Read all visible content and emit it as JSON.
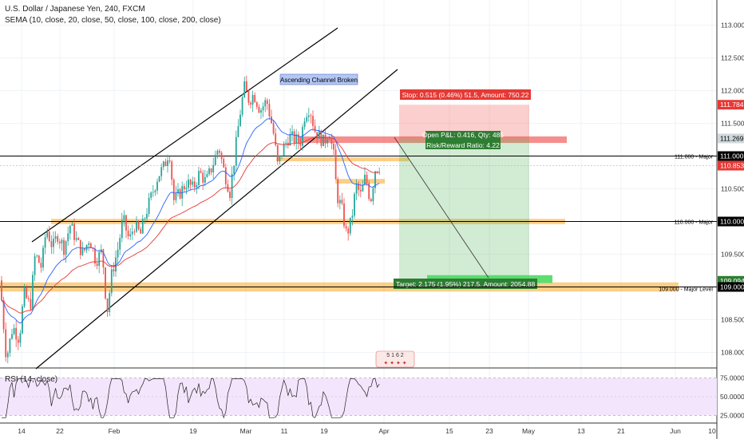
{
  "header": {
    "title": "U.S. Dollar / Japanese Yen, 240, FXCM",
    "indicator": "SEMA (10, close, 20, close, 50, close, 100, close, 200, close)",
    "rsi_label": "RSI (14, close)"
  },
  "colors": {
    "up": "#26a69a",
    "down": "#ef5350",
    "ema_fast": "#e53935",
    "ema_slow": "#2962ff",
    "orange_zone": "#f9a825",
    "red_zone": "#ef5350",
    "profit": "#4caf50",
    "loss": "#ef5350",
    "rsi_bg": "#f3e5fc",
    "rsi_line": "#222222"
  },
  "chart_data": {
    "type": "candlestick",
    "symbol": "USDJPY",
    "timeframe": "240",
    "x_ticks": [
      "14",
      "22",
      "Feb",
      "19",
      "Mar",
      "11",
      "19",
      "Apr",
      "15",
      "23",
      "May",
      "13",
      "21",
      "Jun",
      "10"
    ],
    "y_ticks": [
      "113.000",
      "112.500",
      "112.000",
      "111.500",
      "111.000",
      "110.500",
      "110.000",
      "109.500",
      "109.000",
      "108.500",
      "108.000"
    ],
    "ylim": [
      107.7,
      113.3
    ],
    "price_tags": [
      {
        "label": "111.784",
        "value": 111.784,
        "kind": "stop"
      },
      {
        "label": "111.269",
        "value": 111.269,
        "kind": "entry"
      },
      {
        "label": "111.000",
        "value": 111.0,
        "kind": "level"
      },
      {
        "label": "110.853",
        "value": 110.853,
        "kind": "last"
      },
      {
        "label": "110.000",
        "value": 110.0,
        "kind": "level"
      },
      {
        "label": "109.094",
        "value": 109.094,
        "kind": "target"
      },
      {
        "label": "109.000",
        "value": 109.0,
        "kind": "level"
      }
    ],
    "levels": [
      {
        "price": 111.0,
        "label": "111.000 - Major"
      },
      {
        "price": 110.0,
        "label": "110.000 - Major"
      },
      {
        "price": 109.0,
        "label": "109.000 - Major Level"
      }
    ],
    "annotation": "Ascending Channel Broken",
    "position": {
      "stop_text": "Stop: 0.515 (0.46%) 51.5, Amount: 750.22",
      "pnl_text": "Open P&L: 0.416, Qty: 485",
      "rr_text": "Risk/Reward Ratio: 4.22",
      "target_text": "Target: 2.175 (1.95%) 217.5, Amount: 2054.88",
      "entry": 111.269,
      "stop": 111.784,
      "target": 109.094
    },
    "rsi": {
      "levels": [
        "75.0000",
        "50.0000",
        "25.0000"
      ],
      "ylim": [
        18,
        82
      ]
    },
    "price_path": [
      [
        0,
        109.1
      ],
      [
        8,
        107.9
      ],
      [
        16,
        108.4
      ],
      [
        24,
        108.2
      ],
      [
        30,
        108.9
      ],
      [
        38,
        108.7
      ],
      [
        44,
        109.5
      ],
      [
        52,
        109.3
      ],
      [
        58,
        109.9
      ],
      [
        66,
        109.6
      ],
      [
        72,
        109.8
      ],
      [
        80,
        109.6
      ],
      [
        88,
        109.95
      ],
      [
        96,
        109.7
      ],
      [
        104,
        109.5
      ],
      [
        112,
        109.75
      ],
      [
        120,
        109.4
      ],
      [
        128,
        109.55
      ],
      [
        134,
        108.6
      ],
      [
        140,
        109.2
      ],
      [
        148,
        109.6
      ],
      [
        154,
        110.05
      ],
      [
        162,
        109.7
      ],
      [
        168,
        109.95
      ],
      [
        176,
        109.8
      ],
      [
        182,
        110.1
      ],
      [
        190,
        110.4
      ],
      [
        198,
        110.7
      ],
      [
        206,
        110.85
      ],
      [
        212,
        111.1
      ],
      [
        218,
        110.3
      ],
      [
        226,
        110.45
      ],
      [
        234,
        110.6
      ],
      [
        242,
        110.5
      ],
      [
        250,
        110.75
      ],
      [
        258,
        110.6
      ],
      [
        266,
        110.85
      ],
      [
        274,
        111.15
      ],
      [
        280,
        110.8
      ],
      [
        288,
        110.45
      ],
      [
        294,
        111.0
      ],
      [
        300,
        111.6
      ],
      [
        306,
        112.05
      ],
      [
        312,
        111.85
      ],
      [
        318,
        111.95
      ],
      [
        326,
        111.7
      ],
      [
        334,
        111.85
      ],
      [
        342,
        111.4
      ],
      [
        348,
        110.85
      ],
      [
        354,
        111.1
      ],
      [
        362,
        111.3
      ],
      [
        370,
        111.25
      ],
      [
        376,
        111.2
      ],
      [
        382,
        111.65
      ],
      [
        388,
        111.75
      ],
      [
        394,
        111.4
      ],
      [
        400,
        111.3
      ],
      [
        406,
        111.2
      ],
      [
        412,
        111.4
      ],
      [
        418,
        111.0
      ],
      [
        422,
        110.4
      ],
      [
        428,
        110.2
      ],
      [
        434,
        109.8
      ],
      [
        440,
        110.0
      ],
      [
        446,
        110.55
      ],
      [
        452,
        110.4
      ],
      [
        458,
        110.7
      ],
      [
        464,
        110.3
      ],
      [
        470,
        110.8
      ],
      [
        476,
        110.85
      ]
    ]
  }
}
